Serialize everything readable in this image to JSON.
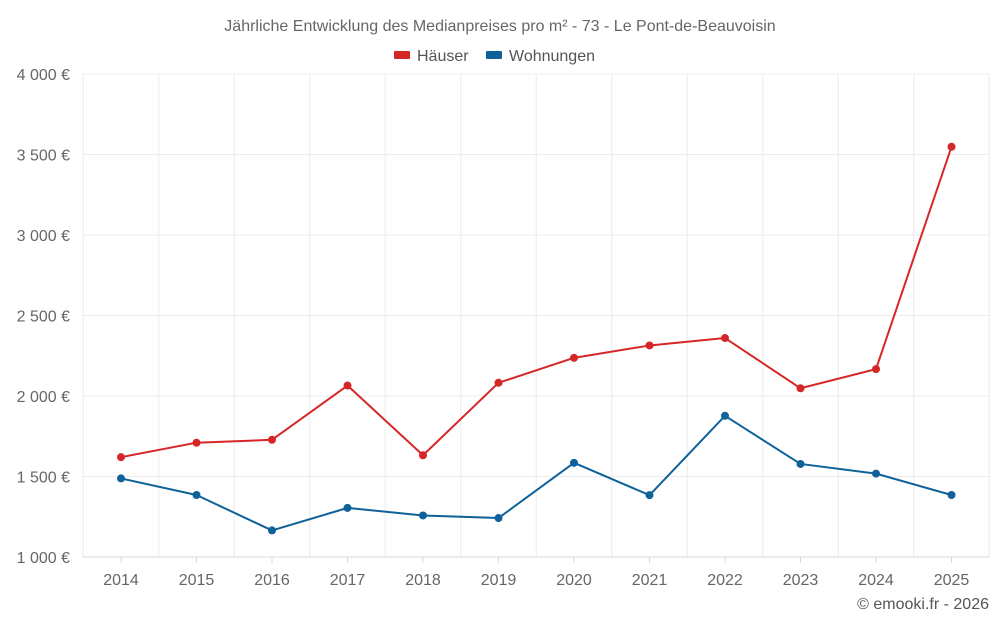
{
  "chart_data": {
    "type": "line",
    "title": "Jährliche Entwicklung des Medianpreises pro m² - 73 - Le Pont-de-Beauvoisin",
    "categories": [
      "2014",
      "2015",
      "2016",
      "2017",
      "2018",
      "2019",
      "2020",
      "2021",
      "2022",
      "2023",
      "2024",
      "2025"
    ],
    "series": [
      {
        "name": "Häuser",
        "color": "#d62728",
        "values": [
          1620,
          1710,
          1728,
          2065,
          1632,
          2082,
          2237,
          2314,
          2360,
          2048,
          2167,
          3548
        ]
      },
      {
        "name": "Wohnungen",
        "color": "#0f6199",
        "values": [
          1488,
          1385,
          1165,
          1305,
          1258,
          1242,
          1585,
          1384,
          1877,
          1578,
          1518,
          1385
        ]
      }
    ],
    "ylim": [
      1000,
      4000
    ],
    "y_ticks": [
      4000,
      3500,
      3000,
      2500,
      2000,
      1500,
      1000
    ],
    "y_tick_labels": [
      "4 000 €",
      "3 500 €",
      "3 000 €",
      "2 500 €",
      "2 000 €",
      "1 500 €",
      "1 000 €"
    ],
    "xlabel": "",
    "ylabel": "",
    "grid": true,
    "legend_position": "top-center"
  },
  "credit": "© emooki.fr - 2026"
}
